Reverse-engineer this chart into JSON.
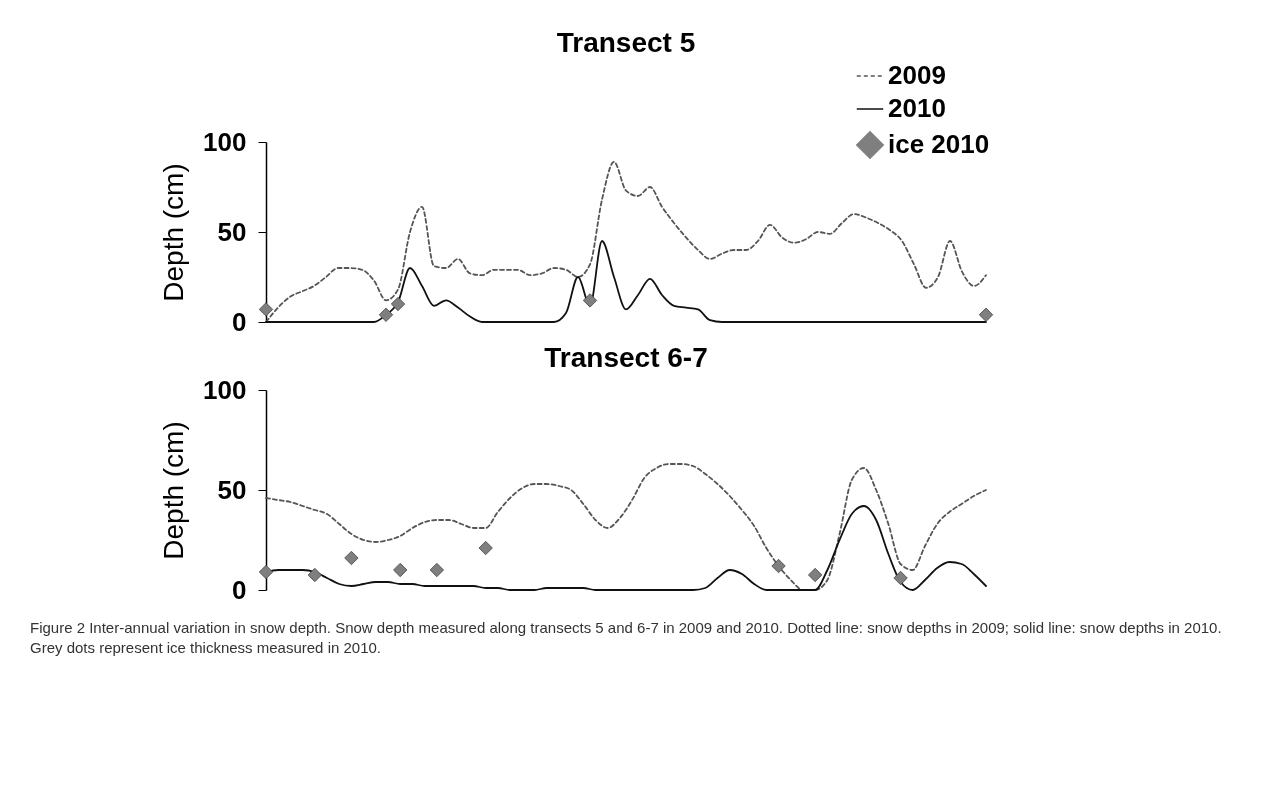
{
  "chart_data": [
    {
      "type": "line",
      "title": "Transect 5",
      "ylabel": "Depth (cm)",
      "categories": [
        null,
        null,
        null,
        null,
        null,
        null,
        null,
        null,
        null,
        null,
        null,
        null,
        null,
        null,
        null,
        null,
        null,
        null,
        null,
        null,
        null,
        null,
        null,
        null,
        null,
        null,
        null,
        null,
        null,
        null,
        null,
        null,
        null,
        null,
        null,
        null,
        null,
        null,
        null,
        null,
        null,
        null,
        null,
        null,
        null,
        null,
        null,
        null,
        null,
        null,
        null,
        null,
        null,
        null,
        null,
        null,
        null,
        null,
        null,
        null,
        null
      ],
      "ylim": [
        0,
        100
      ],
      "yticks": [
        0,
        50,
        100
      ],
      "grid": false,
      "legend": "top right",
      "series": [
        {
          "name": "2009",
          "color": "#555555",
          "line_style": "dashed",
          "values": [
            0,
            8,
            14,
            17,
            20,
            25,
            30,
            30,
            29,
            23,
            12,
            18,
            50,
            64,
            31,
            30,
            35,
            27,
            26,
            29,
            29,
            29,
            26,
            27,
            30,
            29,
            25,
            32,
            68,
            89,
            73,
            70,
            75,
            64,
            55,
            47,
            40,
            35,
            38,
            40,
            40,
            45,
            54,
            47,
            44,
            46,
            50,
            49,
            55,
            60,
            58,
            55,
            51,
            45,
            32,
            19,
            25,
            45,
            28,
            20,
            26
          ]
        },
        {
          "name": "2010",
          "color": "#111111",
          "line_style": "solid",
          "values": [
            0,
            0,
            0,
            0,
            0,
            0,
            0,
            0,
            0,
            0,
            4,
            11,
            30,
            20,
            9,
            12,
            8,
            3,
            0,
            0,
            0,
            0,
            0,
            0,
            0,
            5,
            25,
            9,
            45,
            25,
            7,
            15,
            24,
            15,
            9,
            8,
            7,
            1,
            0,
            0,
            0,
            0,
            0,
            0,
            0,
            0,
            0,
            0,
            0,
            0,
            0,
            0,
            0,
            0,
            0,
            0,
            0,
            0,
            0,
            0,
            0
          ]
        },
        {
          "name": "ice 2010",
          "type": "scatter",
          "marker": "diamond",
          "color": "#7f7f7f",
          "values": [
            7,
            null,
            null,
            null,
            null,
            null,
            null,
            null,
            null,
            null,
            4,
            10,
            null,
            null,
            null,
            null,
            null,
            null,
            null,
            null,
            null,
            null,
            null,
            null,
            null,
            null,
            null,
            12,
            null,
            null,
            null,
            null,
            null,
            null,
            null,
            null,
            null,
            null,
            null,
            null,
            null,
            null,
            null,
            null,
            null,
            null,
            null,
            null,
            null,
            null,
            null,
            null,
            null,
            null,
            null,
            null,
            null,
            null,
            null,
            null,
            4
          ]
        }
      ]
    },
    {
      "type": "line",
      "title": "Transect 6-7",
      "ylabel": "Depth (cm)",
      "categories": [
        null,
        null,
        null,
        null,
        null,
        null,
        null,
        null,
        null,
        null,
        null,
        null,
        null,
        null,
        null,
        null,
        null,
        null,
        null,
        null,
        null,
        null,
        null,
        null,
        null,
        null,
        null,
        null,
        null,
        null,
        null,
        null,
        null,
        null,
        null,
        null,
        null,
        null,
        null,
        null,
        null,
        null,
        null,
        null,
        null,
        null,
        null,
        null,
        null,
        null,
        null,
        null,
        null,
        null,
        null,
        null,
        null,
        null,
        null,
        null
      ],
      "ylim": [
        0,
        100
      ],
      "yticks": [
        0,
        50,
        100
      ],
      "grid": false,
      "annotations": [
        "Figure 2 Inter-annual variation in snow depth. Snow depth measured along transects 5 and 6-7 in 2009 and 2010. Dotted line: snow depths in 2009; solid line: snow depths in 2010. Grey dots represent ice thickness measured in 2010."
      ],
      "series": [
        {
          "color": "#555555",
          "line_style": "dashed",
          "values": [
            46,
            45,
            44,
            42,
            40,
            38,
            33,
            28,
            25,
            24,
            25,
            27,
            31,
            34,
            35,
            35,
            33,
            31,
            31,
            39,
            46,
            51,
            53,
            53,
            52,
            50,
            43,
            35,
            31,
            36,
            45,
            56,
            61,
            63,
            63,
            62,
            58,
            53,
            47,
            40,
            32,
            21,
            12,
            5,
            0,
            0,
            5,
            28,
            55,
            61,
            50,
            33,
            13,
            10,
            22,
            33,
            39,
            43,
            47,
            50
          ]
        },
        {
          "color": "#111111",
          "line_style": "solid",
          "values": [
            9,
            10,
            10,
            10,
            9,
            6,
            3,
            2,
            3,
            4,
            4,
            3,
            3,
            2,
            2,
            2,
            2,
            2,
            1,
            1,
            0,
            0,
            0,
            1,
            1,
            1,
            1,
            0,
            0,
            0,
            0,
            0,
            0,
            0,
            0,
            0,
            1,
            6,
            10,
            8,
            3,
            0,
            0,
            0,
            0,
            0,
            10,
            25,
            38,
            42,
            35,
            18,
            4,
            0,
            5,
            11,
            14,
            13,
            8,
            2
          ]
        },
        {
          "type": "scatter",
          "marker": "diamond",
          "color": "#7f7f7f",
          "values": [
            9,
            null,
            null,
            null,
            7.5,
            null,
            null,
            16,
            null,
            null,
            null,
            10,
            null,
            null,
            10,
            null,
            null,
            null,
            21,
            null,
            null,
            null,
            null,
            null,
            null,
            null,
            null,
            null,
            null,
            null,
            null,
            null,
            null,
            null,
            null,
            null,
            null,
            null,
            null,
            null,
            null,
            null,
            12,
            null,
            null,
            7.5,
            null,
            null,
            null,
            null,
            null,
            null,
            6,
            null,
            null,
            null,
            null,
            null,
            null,
            null
          ]
        }
      ]
    }
  ]
}
